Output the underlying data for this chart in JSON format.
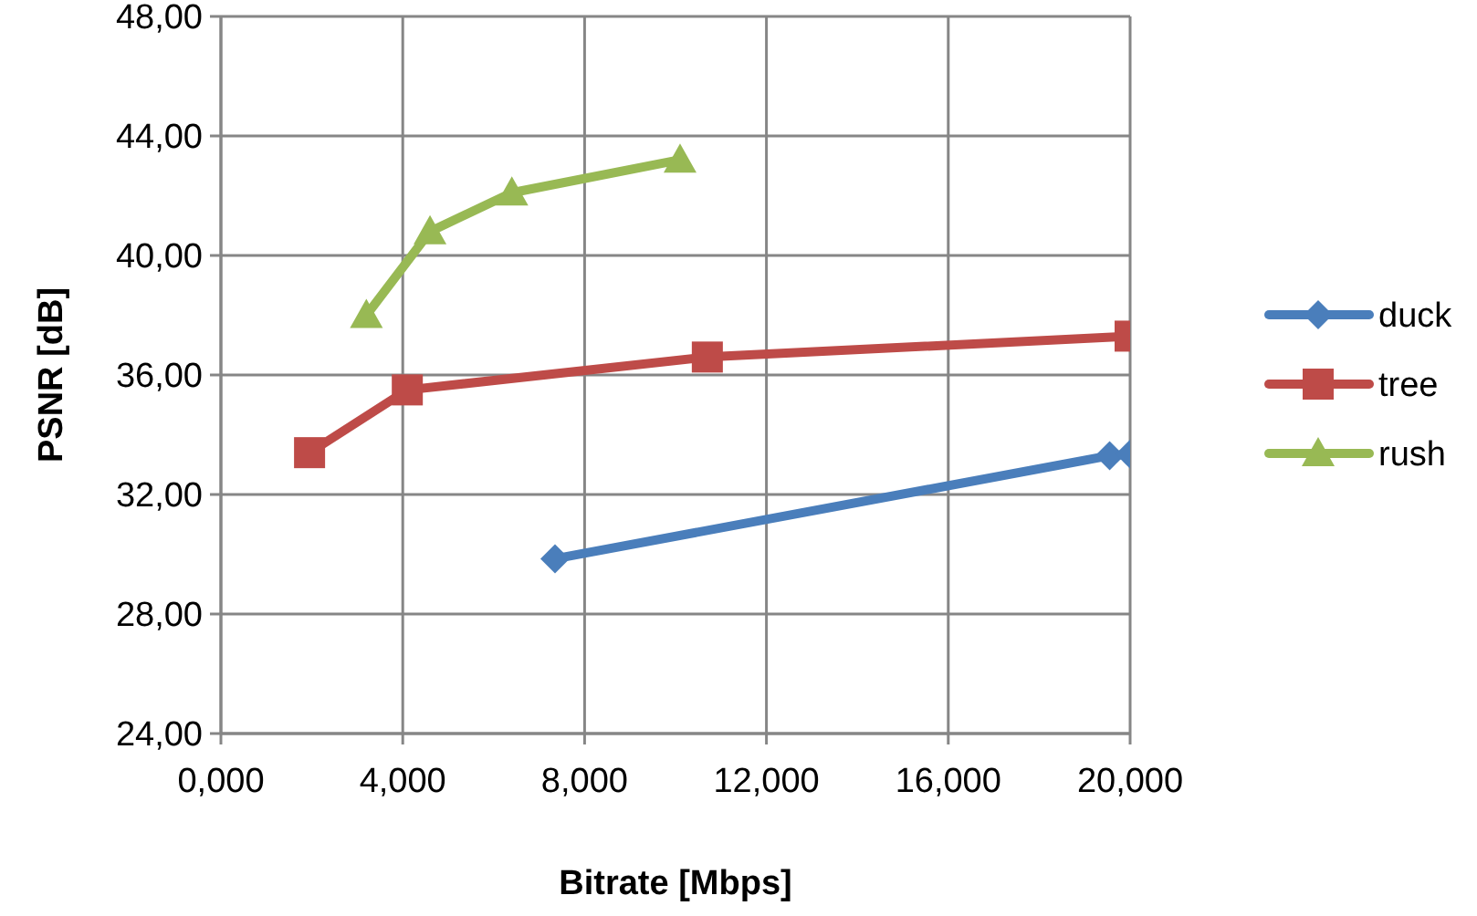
{
  "chart_data": {
    "type": "line",
    "xlabel": "Bitrate [Mbps]",
    "ylabel": "PSNR [dB]",
    "xlim": [
      0,
      20
    ],
    "ylim": [
      24,
      48
    ],
    "xticks": [
      {
        "value": 0,
        "label": "0,000"
      },
      {
        "value": 4,
        "label": "4,000"
      },
      {
        "value": 8,
        "label": "8,000"
      },
      {
        "value": 12,
        "label": "12,000"
      },
      {
        "value": 16,
        "label": "16,000"
      },
      {
        "value": 20,
        "label": "20,000"
      }
    ],
    "yticks": [
      {
        "value": 24,
        "label": "24,00"
      },
      {
        "value": 28,
        "label": "28,00"
      },
      {
        "value": 32,
        "label": "32,00"
      },
      {
        "value": 36,
        "label": "36,00"
      },
      {
        "value": 40,
        "label": "40,00"
      },
      {
        "value": 44,
        "label": "44,00"
      },
      {
        "value": 48,
        "label": "48,00"
      }
    ],
    "grid": true,
    "legend": "right",
    "series": [
      {
        "name": "duck",
        "color": "#4a7ebb",
        "marker": "diamond",
        "x": [
          7.35,
          19.55,
          20
        ],
        "values": [
          29.85,
          33.3,
          33.35
        ]
      },
      {
        "name": "tree",
        "color": "#be4b48",
        "marker": "square",
        "x": [
          1.95,
          4.1,
          10.7,
          20
        ],
        "values": [
          33.4,
          35.5,
          36.6,
          37.3
        ]
      },
      {
        "name": "rush",
        "color": "#98b954",
        "marker": "triangle",
        "x": [
          3.2,
          4.6,
          6.4,
          10.1
        ],
        "values": [
          38.0,
          40.8,
          42.1,
          43.2
        ]
      }
    ]
  }
}
